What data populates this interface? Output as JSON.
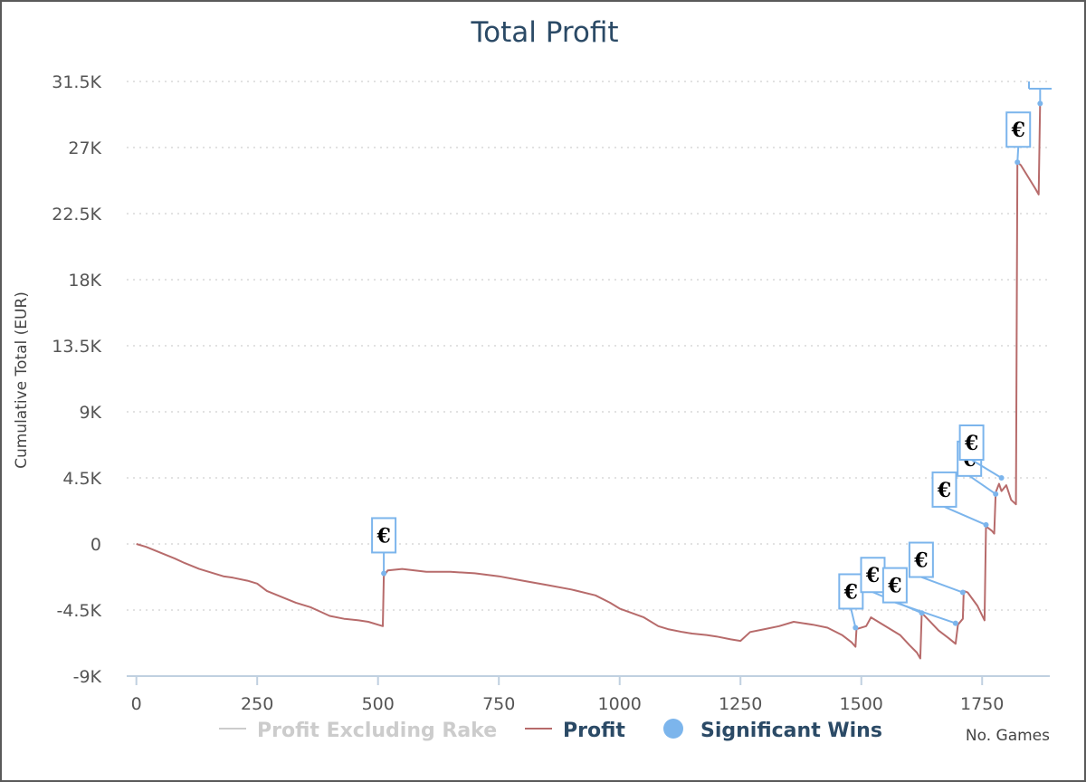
{
  "chart_data": {
    "type": "line",
    "title": "Total Profit",
    "ylabel": "Cumulative Total (EUR)",
    "xlabel": "No. Games",
    "xlim": [
      -20,
      1890
    ],
    "ylim": [
      -9000,
      31500
    ],
    "x_ticks": [
      0,
      250,
      500,
      750,
      1000,
      1250,
      1500,
      1750
    ],
    "x_tick_labels": [
      "0",
      "250",
      "500",
      "750",
      "1000",
      "1250",
      "1500",
      "1750"
    ],
    "y_ticks": [
      -9000,
      -4500,
      0,
      4500,
      9000,
      13500,
      18000,
      22500,
      27000,
      31500
    ],
    "y_tick_labels": [
      "-9K",
      "-4.5K",
      "0",
      "4.5K",
      "9K",
      "13.5K",
      "18K",
      "22.5K",
      "27K",
      "31.5K"
    ],
    "grid": true,
    "legend_position": "bottom",
    "legend": [
      {
        "name": "Profit Excluding Rake",
        "color": "#cccccc",
        "active": false,
        "marker": "line"
      },
      {
        "name": "Profit",
        "color": "#b76b6b",
        "active": true,
        "marker": "line"
      },
      {
        "name": "Significant Wins",
        "color": "#7cb5ec",
        "active": true,
        "marker": "circle"
      }
    ],
    "series": [
      {
        "name": "Profit",
        "color": "#b76b6b",
        "points": [
          [
            0,
            0
          ],
          [
            20,
            -200
          ],
          [
            50,
            -600
          ],
          [
            80,
            -1000
          ],
          [
            100,
            -1300
          ],
          [
            130,
            -1700
          ],
          [
            150,
            -1900
          ],
          [
            180,
            -2200
          ],
          [
            200,
            -2300
          ],
          [
            230,
            -2500
          ],
          [
            250,
            -2700
          ],
          [
            270,
            -3200
          ],
          [
            300,
            -3600
          ],
          [
            330,
            -4000
          ],
          [
            360,
            -4300
          ],
          [
            380,
            -4600
          ],
          [
            400,
            -4900
          ],
          [
            430,
            -5100
          ],
          [
            460,
            -5200
          ],
          [
            480,
            -5300
          ],
          [
            510,
            -5600
          ],
          [
            512,
            -2200
          ],
          [
            520,
            -1800
          ],
          [
            550,
            -1700
          ],
          [
            600,
            -1900
          ],
          [
            650,
            -1900
          ],
          [
            700,
            -2000
          ],
          [
            750,
            -2200
          ],
          [
            800,
            -2500
          ],
          [
            850,
            -2800
          ],
          [
            900,
            -3100
          ],
          [
            950,
            -3500
          ],
          [
            980,
            -4000
          ],
          [
            1000,
            -4400
          ],
          [
            1050,
            -5000
          ],
          [
            1080,
            -5600
          ],
          [
            1100,
            -5800
          ],
          [
            1130,
            -6000
          ],
          [
            1150,
            -6100
          ],
          [
            1180,
            -6200
          ],
          [
            1200,
            -6300
          ],
          [
            1230,
            -6500
          ],
          [
            1250,
            -6600
          ],
          [
            1270,
            -6000
          ],
          [
            1300,
            -5800
          ],
          [
            1330,
            -5600
          ],
          [
            1360,
            -5300
          ],
          [
            1400,
            -5500
          ],
          [
            1430,
            -5700
          ],
          [
            1460,
            -6200
          ],
          [
            1480,
            -6700
          ],
          [
            1488,
            -7000
          ],
          [
            1490,
            -5800
          ],
          [
            1510,
            -5600
          ],
          [
            1520,
            -5000
          ],
          [
            1540,
            -5400
          ],
          [
            1560,
            -5800
          ],
          [
            1580,
            -6200
          ],
          [
            1600,
            -6900
          ],
          [
            1615,
            -7400
          ],
          [
            1622,
            -7800
          ],
          [
            1625,
            -4700
          ],
          [
            1640,
            -5200
          ],
          [
            1660,
            -5900
          ],
          [
            1680,
            -6400
          ],
          [
            1695,
            -6800
          ],
          [
            1700,
            -5500
          ],
          [
            1710,
            -5100
          ],
          [
            1712,
            -3200
          ],
          [
            1720,
            -3300
          ],
          [
            1740,
            -4200
          ],
          [
            1755,
            -5200
          ],
          [
            1758,
            1200
          ],
          [
            1770,
            900
          ],
          [
            1775,
            700
          ],
          [
            1778,
            3500
          ],
          [
            1785,
            4100
          ],
          [
            1790,
            3600
          ],
          [
            1800,
            4000
          ],
          [
            1810,
            3000
          ],
          [
            1820,
            2700
          ],
          [
            1823,
            26000
          ],
          [
            1830,
            25800
          ],
          [
            1845,
            25000
          ],
          [
            1860,
            24200
          ],
          [
            1867,
            23800
          ],
          [
            1870,
            30000
          ]
        ]
      }
    ],
    "significant_wins": [
      {
        "x": 512,
        "y": -2000,
        "label": "€"
      },
      {
        "x": 1488,
        "y": -5700,
        "label": "€"
      },
      {
        "x": 1625,
        "y": -4700,
        "label": "€"
      },
      {
        "x": 1695,
        "y": -5400,
        "label": "€"
      },
      {
        "x": 1710,
        "y": -3300,
        "label": "€"
      },
      {
        "x": 1758,
        "y": 1300,
        "label": "€"
      },
      {
        "x": 1778,
        "y": 3400,
        "label": "€"
      },
      {
        "x": 1790,
        "y": 4500,
        "label": "€"
      },
      {
        "x": 1823,
        "y": 26000,
        "label": "€"
      },
      {
        "x": 1870,
        "y": 30000,
        "label": "€"
      }
    ]
  }
}
